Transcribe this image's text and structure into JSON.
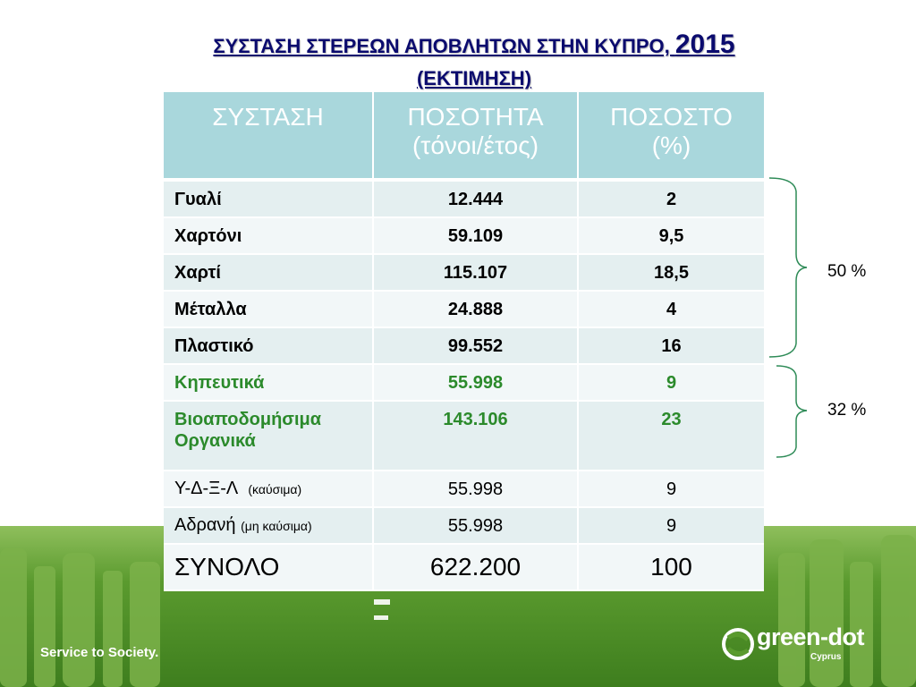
{
  "title": {
    "line1": "ΣΥΣΤΑΣΗ ΣΤΕΡΕΩΝ ΑΠΟΒΛΗΤΩΝ ΣΤΗΝ ΚΥΠΡΟ, ",
    "year": "2015",
    "line2": "(ΕΚΤΙΜΗΣΗ)"
  },
  "table": {
    "headers": {
      "col1": "ΣΥΣΤΑΣΗ",
      "col2_line1": "ΠΟΣΟΤΗΤΑ",
      "col2_line2": "(τόνοι/έτος)",
      "col3_line1": "ΠΟΣΟΣΤΟ",
      "col3_line2": "(%)"
    },
    "rows": [
      {
        "name": "Γυαλί",
        "quantity": "12.444",
        "percent": "2"
      },
      {
        "name": "Χαρτόνι",
        "quantity": "59.109",
        "percent": "9,5"
      },
      {
        "name": "Χαρτί",
        "quantity": "115.107",
        "percent": "18,5"
      },
      {
        "name": "Μέταλλα",
        "quantity": "24.888",
        "percent": "4"
      },
      {
        "name": "Πλαστικό",
        "quantity": "99.552",
        "percent": "16"
      },
      {
        "name": "Κηπευτικά",
        "quantity": "55.998",
        "percent": "9"
      },
      {
        "name_line1": "Βιοαποδομήσιμα",
        "name_line2": "Οργανικά",
        "quantity": "143.106",
        "percent": "23"
      },
      {
        "name": "Υ-Δ-Ξ-Λ",
        "note": "(καύσιμα)",
        "quantity": "55.998",
        "percent": "9"
      },
      {
        "name": "Αδρανή",
        "note": "(μη καύσιμα)",
        "quantity": "55.998",
        "percent": "9"
      }
    ],
    "total": {
      "name": "ΣΥΝΟΛΟ",
      "quantity": "622.200",
      "percent": "100"
    }
  },
  "brackets": {
    "recyclables": "50 %",
    "organics": "32 %"
  },
  "footer": {
    "slogan": "Service to Society.",
    "logo_name": "green-dot",
    "logo_sub": "Cyprus"
  },
  "colors": {
    "title": "#0b0b6e",
    "header_bg": "#a9d7dc",
    "green_text": "#2b8a2b",
    "band_green": "#3e7e1e"
  }
}
